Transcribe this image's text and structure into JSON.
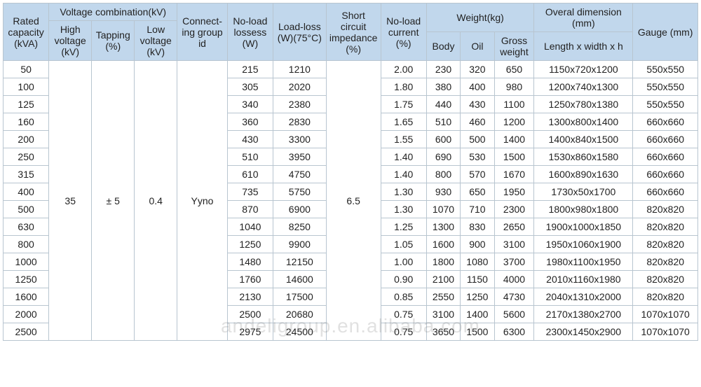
{
  "watermark": "andeligroup.en.alibaba.com",
  "headers": {
    "rated_capacity": "Rated capacity (kVA)",
    "voltage_combination": "Voltage combination(kV)",
    "high_voltage": "High voltage (kV)",
    "tapping": "Tapping (%)",
    "low_voltage": "Low voltage (kV)",
    "connecting_group": "Connect- ing group id",
    "noload_loss": "No-load lossess (W)",
    "load_loss": "Load-loss (W)(75°C)",
    "short_circuit": "Short circuit impedance (%)",
    "noload_current": "No-load current (%)",
    "weight": "Weight(kg)",
    "body": "Body",
    "oil": "Oil",
    "gross": "Gross weight",
    "overall_dim": "Overal dimension (mm)",
    "lwh": "Length x width x h",
    "gauge": "Gauge (mm)"
  },
  "merged": {
    "high_voltage": "35",
    "tapping": "± 5",
    "low_voltage": "0.4",
    "connecting_group": "Yyno",
    "short_circuit": "6.5"
  },
  "rows": [
    {
      "cap": "50",
      "nll": "215",
      "ll": "1210",
      "nlc": "2.00",
      "body": "230",
      "oil": "320",
      "gross": "650",
      "dim": "1150x720x1200",
      "gauge": "550x550"
    },
    {
      "cap": "100",
      "nll": "305",
      "ll": "2020",
      "nlc": "1.80",
      "body": "380",
      "oil": "400",
      "gross": "980",
      "dim": "1200x740x1300",
      "gauge": "550x550"
    },
    {
      "cap": "125",
      "nll": "340",
      "ll": "2380",
      "nlc": "1.75",
      "body": "440",
      "oil": "430",
      "gross": "1100",
      "dim": "1250x780x1380",
      "gauge": "550x550"
    },
    {
      "cap": "160",
      "nll": "360",
      "ll": "2830",
      "nlc": "1.65",
      "body": "510",
      "oil": "460",
      "gross": "1200",
      "dim": "1300x800x1400",
      "gauge": "660x660"
    },
    {
      "cap": "200",
      "nll": "430",
      "ll": "3300",
      "nlc": "1.55",
      "body": "600",
      "oil": "500",
      "gross": "1400",
      "dim": "1400x840x1500",
      "gauge": "660x660"
    },
    {
      "cap": "250",
      "nll": "510",
      "ll": "3950",
      "nlc": "1.40",
      "body": "690",
      "oil": "530",
      "gross": "1500",
      "dim": "1530x860x1580",
      "gauge": "660x660"
    },
    {
      "cap": "315",
      "nll": "610",
      "ll": "4750",
      "nlc": "1.40",
      "body": "800",
      "oil": "570",
      "gross": "1670",
      "dim": "1600x890x1630",
      "gauge": "660x660"
    },
    {
      "cap": "400",
      "nll": "735",
      "ll": "5750",
      "nlc": "1.30",
      "body": "930",
      "oil": "650",
      "gross": "1950",
      "dim": "1730x50x1700",
      "gauge": "660x660"
    },
    {
      "cap": "500",
      "nll": "870",
      "ll": "6900",
      "nlc": "1.30",
      "body": "1070",
      "oil": "710",
      "gross": "2300",
      "dim": "1800x980x1800",
      "gauge": "820x820"
    },
    {
      "cap": "630",
      "nll": "1040",
      "ll": "8250",
      "nlc": "1.25",
      "body": "1300",
      "oil": "830",
      "gross": "2650",
      "dim": "1900x1000x1850",
      "gauge": "820x820"
    },
    {
      "cap": "800",
      "nll": "1250",
      "ll": "9900",
      "nlc": "1.05",
      "body": "1600",
      "oil": "900",
      "gross": "3100",
      "dim": "1950x1060x1900",
      "gauge": "820x820"
    },
    {
      "cap": "1000",
      "nll": "1480",
      "ll": "12150",
      "nlc": "1.00",
      "body": "1800",
      "oil": "1080",
      "gross": "3700",
      "dim": "1980x1100x1950",
      "gauge": "820x820"
    },
    {
      "cap": "1250",
      "nll": "1760",
      "ll": "14600",
      "nlc": "0.90",
      "body": "2100",
      "oil": "1150",
      "gross": "4000",
      "dim": "2010x1160x1980",
      "gauge": "820x820"
    },
    {
      "cap": "1600",
      "nll": "2130",
      "ll": "17500",
      "nlc": "0.85",
      "body": "2550",
      "oil": "1250",
      "gross": "4730",
      "dim": "2040x1310x2000",
      "gauge": "820x820"
    },
    {
      "cap": "2000",
      "nll": "2500",
      "ll": "20680",
      "nlc": "0.75",
      "body": "3100",
      "oil": "1400",
      "gross": "5600",
      "dim": "2170x1380x2700",
      "gauge": "1070x1070"
    },
    {
      "cap": "2500",
      "nll": "2975",
      "ll": "24500",
      "nlc": "0.75",
      "body": "3650",
      "oil": "1500",
      "gross": "6300",
      "dim": "2300x1450x2900",
      "gauge": "1070x1070"
    }
  ],
  "col_widths": [
    "62",
    "58",
    "58",
    "58",
    "68",
    "62",
    "72",
    "74",
    "62",
    "46",
    "46",
    "54",
    "134",
    "88"
  ],
  "colors": {
    "header_bg": "#c1d7ec",
    "border": "#b8c5d0",
    "cell_bg": "#ffffff",
    "text": "#222222"
  }
}
